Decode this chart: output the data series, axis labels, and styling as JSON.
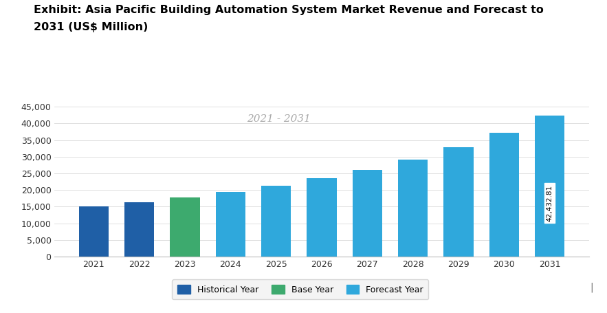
{
  "years": [
    2021,
    2022,
    2023,
    2024,
    2025,
    2026,
    2027,
    2028,
    2029,
    2030,
    2031
  ],
  "values": [
    15200,
    16300,
    17800,
    19500,
    21200,
    23500,
    26000,
    29200,
    32800,
    37200,
    42432.81
  ],
  "colors": [
    "#1f5fa6",
    "#1f5fa6",
    "#3daa6e",
    "#2fa8dc",
    "#2fa8dc",
    "#2fa8dc",
    "#2fa8dc",
    "#2fa8dc",
    "#2fa8dc",
    "#2fa8dc",
    "#2fa8dc"
  ],
  "historical_color": "#1f5fa6",
  "base_color": "#3daa6e",
  "forecast_color": "#2fa8dc",
  "annotation_value": "42,432.81",
  "watermark_text": "2021 - 2031",
  "title_line1": "Exhibit: Asia Pacific Building Automation System Market Revenue and Forecast to",
  "title_line2": "2031 (US$ Million)",
  "ylim": [
    0,
    47000
  ],
  "yticks": [
    0,
    5000,
    10000,
    15000,
    20000,
    25000,
    30000,
    35000,
    40000,
    45000
  ],
  "legend_labels": [
    "Historical Year",
    "Base Year",
    "Forecast Year"
  ],
  "bg_color": "#ffffff",
  "title_fontsize": 11.5,
  "tick_fontsize": 9,
  "legend_fontsize": 9,
  "watermark_fontsize": 11
}
